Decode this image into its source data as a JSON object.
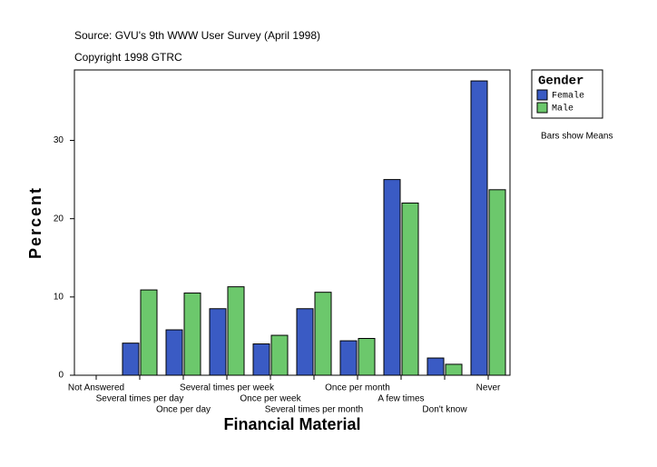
{
  "chart_data": {
    "type": "bar",
    "subtitle": "Source: GVU's 9th WWW User Survey (April 1998)",
    "copyright": "Copyright 1998 GTRC",
    "x_label": "Financial Material",
    "y_label": "Percent",
    "note": "Bars show Means",
    "legend_title": "Gender",
    "categories": [
      "Not Answered",
      "Several times per day",
      "Once per day",
      "Several times per week",
      "Once per week",
      "Several times per month",
      "Once per month",
      "A few times",
      "Don't know",
      "Never"
    ],
    "series": [
      {
        "name": "Female",
        "color": "#3a5bc4",
        "values": [
          0,
          4.1,
          5.8,
          8.5,
          4.0,
          8.5,
          4.4,
          25.0,
          2.2,
          37.6
        ]
      },
      {
        "name": "Male",
        "color": "#6cc86c",
        "values": [
          0,
          10.9,
          10.5,
          11.3,
          5.1,
          10.6,
          4.7,
          22.0,
          1.4,
          23.7
        ]
      }
    ],
    "ylim": [
      0,
      39
    ],
    "yticks": [
      0,
      10,
      20,
      30
    ]
  }
}
